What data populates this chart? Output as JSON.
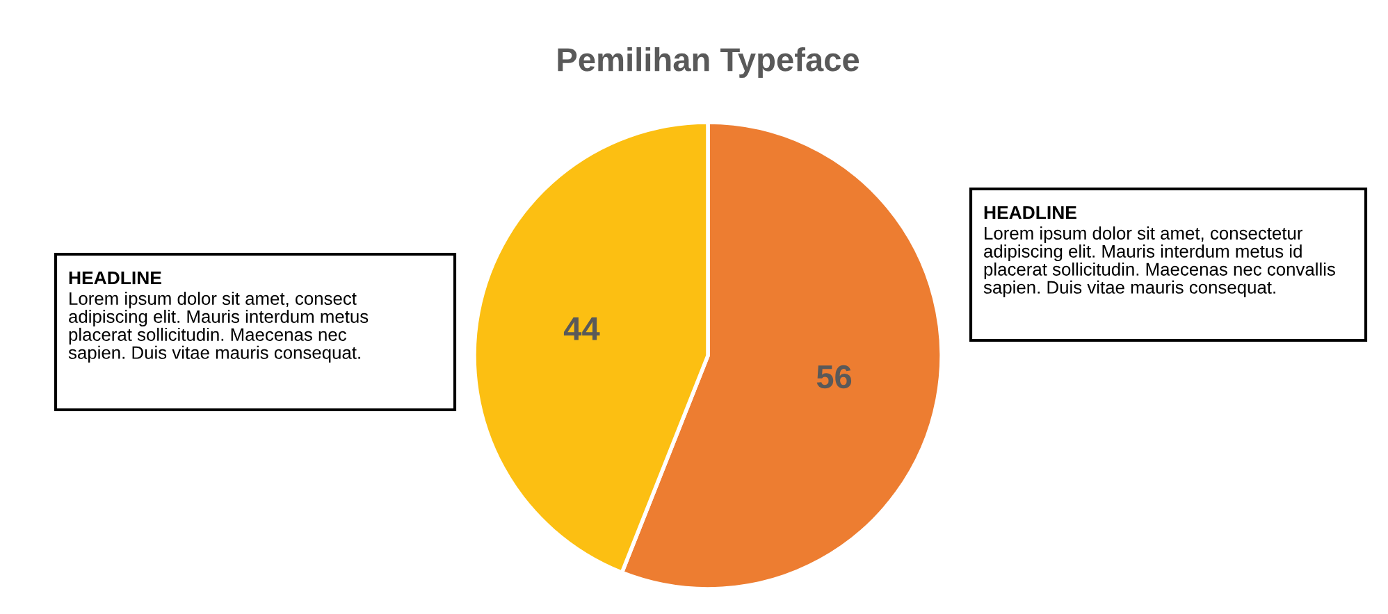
{
  "chart_data": {
    "type": "pie",
    "title": "Pemilihan Typeface",
    "categories": [
      null,
      null
    ],
    "values": [
      56,
      44
    ],
    "colors": [
      "#ed7d31",
      "#fcbf12"
    ],
    "data_labels": true,
    "legend": false,
    "annotations": [
      "HEADLINE\nLorem ipsum dolor sit amet, consect\nadipiscing elit. Mauris interdum metus\nplacerat sollicitudin. Maecenas nec\nsapien. Duis vitae mauris consequat.",
      "HEADLINE\nLorem ipsum dolor sit amet, consectetur\nadipiscing elit. Mauris interdum metus id\nplacerat sollicitudin. Maecenas nec convallis\nsapien. Duis vitae mauris consequat."
    ]
  }
}
